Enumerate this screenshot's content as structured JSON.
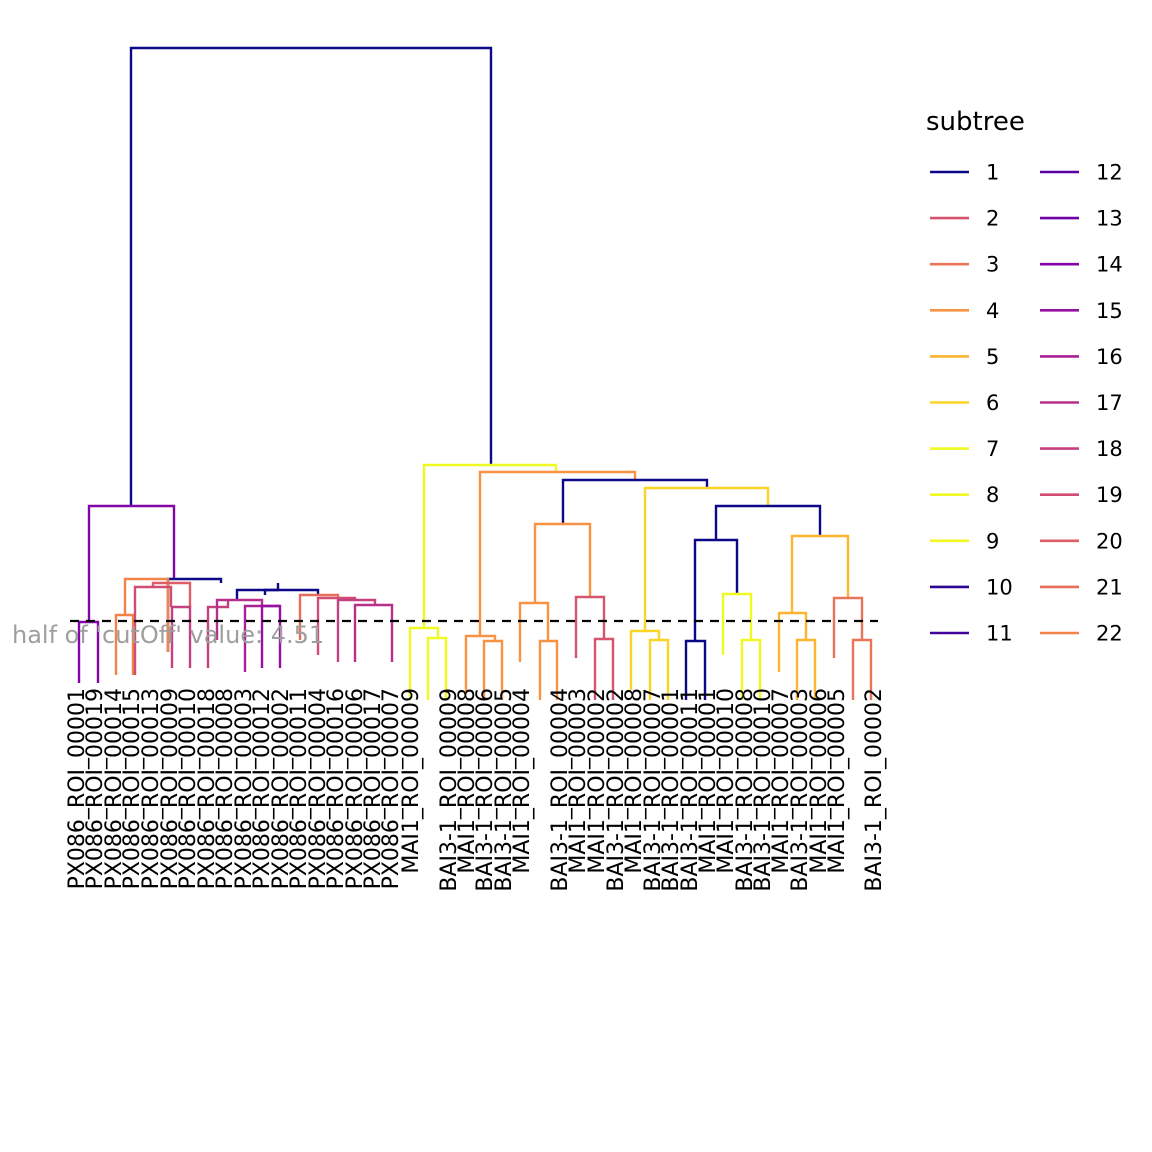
{
  "chart_data": {
    "type": "dendrogram",
    "cutoff_label": "half of 'cutOff' value:  4.51",
    "legend": {
      "title": "subtree",
      "entries": [
        {
          "label": "1",
          "color": "#0d0887"
        },
        {
          "label": "2",
          "color": "#d5546e"
        },
        {
          "label": "3",
          "color": "#ea7457"
        },
        {
          "label": "4",
          "color": "#f79342"
        },
        {
          "label": "5",
          "color": "#fdb42f"
        },
        {
          "label": "6",
          "color": "#fbd524"
        },
        {
          "label": "7",
          "color": "#f0f921"
        },
        {
          "label": "8",
          "color": "#f0f921"
        },
        {
          "label": "9",
          "color": "#f0f921"
        },
        {
          "label": "10",
          "color": "#2c0594"
        },
        {
          "label": "11",
          "color": "#43039e"
        },
        {
          "label": "12",
          "color": "#5901a5"
        },
        {
          "label": "13",
          "color": "#6e00a8"
        },
        {
          "label": "14",
          "color": "#8305a7"
        },
        {
          "label": "15",
          "color": "#9511a1"
        },
        {
          "label": "16",
          "color": "#a72197"
        },
        {
          "label": "17",
          "color": "#b6308b"
        },
        {
          "label": "18",
          "color": "#c5407e"
        },
        {
          "label": "19",
          "color": "#d14e72"
        },
        {
          "label": "20",
          "color": "#dd5e66"
        },
        {
          "label": "21",
          "color": "#e76e5b"
        },
        {
          "label": "22",
          "color": "#f2844b"
        }
      ]
    },
    "leaves": [
      "PX086_ROI_00001",
      "PX086_ROI_00019",
      "PX086_ROI_00014",
      "PX086_ROI_00015",
      "PX086_ROI_00013",
      "PX086_ROI_00009",
      "PX086_ROI_00010",
      "PX086_ROI_00018",
      "PX086_ROI_00008",
      "PX086_ROI_00003",
      "PX086_ROI_00012",
      "PX086_ROI_00002",
      "PX086_ROI_00011",
      "PX086_ROI_00004",
      "PX086_ROI_00016",
      "PX086_ROI_00006",
      "PX086_ROI_00017",
      "PX086_ROI_00007",
      "MAI1_ROI_00009",
      "BAI3-1_ROI_00009",
      "MAI1_ROI_00008",
      "BAI3-1_ROI_00006",
      "BAI3-1_ROI_00005",
      "MAI1_ROI_00004",
      "BAI3-1_ROI_00004",
      "MAI1_ROI_00003",
      "BAI3-1_ROI_00002",
      "MAI1_ROI_00002",
      "BAI3-1_ROI_00001",
      "MAI1_ROI_00008",
      "BAI3-1_ROI_00007",
      "MAI1_ROI_00001",
      "BAI3-1_ROI_00011",
      "MAI1_ROI_00010",
      "BAI3-1_ROI_00010",
      "MAI1_ROI_00007",
      "BAI3-1_ROI_00008",
      "MAI1_ROI_00006",
      "BAI3-1_ROI_00003",
      "MAI1_ROI_00005",
      "BAI3-1_ROI_00002"
    ]
  }
}
